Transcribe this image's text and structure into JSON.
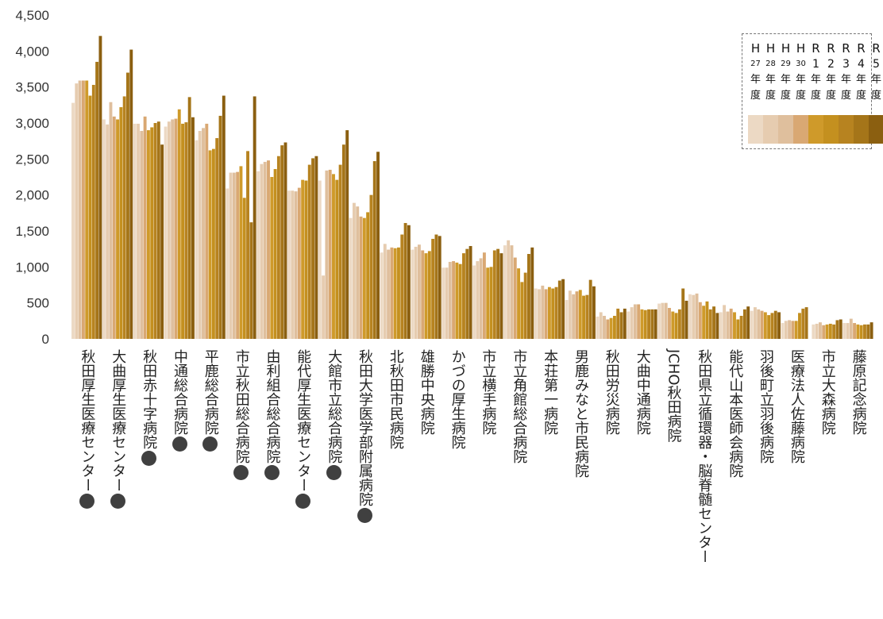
{
  "chart_data": {
    "type": "bar",
    "title": "",
    "xlabel": "",
    "ylabel": "",
    "ylim": [
      0,
      4500
    ],
    "yticks": [
      "0",
      "500",
      "1,000",
      "1,500",
      "2,000",
      "2,500",
      "3,000",
      "3,500",
      "4,000",
      "4,500"
    ],
    "grid": false,
    "legend_position": "top-right",
    "categories": [
      {
        "name": "秋田厚生医療センター",
        "marker": "●"
      },
      {
        "name": "大曲厚生医療センター",
        "marker": "●"
      },
      {
        "name": "秋田赤十字病院",
        "marker": "●"
      },
      {
        "name": "中通総合病院",
        "marker": "●"
      },
      {
        "name": "平鹿総合病院",
        "marker": "●"
      },
      {
        "name": "市立秋田総合病院",
        "marker": "●"
      },
      {
        "name": "由利組合総合病院",
        "marker": "●"
      },
      {
        "name": "能代厚生医療センター",
        "marker": "●"
      },
      {
        "name": "大館市立総合病院",
        "marker": "●"
      },
      {
        "name": "秋田大学医学部附属病院",
        "marker": "●"
      },
      {
        "name": "北秋田市民病院",
        "marker": ""
      },
      {
        "name": "雄勝中央病院",
        "marker": ""
      },
      {
        "name": "かづの厚生病院",
        "marker": ""
      },
      {
        "name": "市立横手病院",
        "marker": ""
      },
      {
        "name": "市立角館総合病院",
        "marker": ""
      },
      {
        "name": "本荘第一病院",
        "marker": ""
      },
      {
        "name": "男鹿みなと市民病院",
        "marker": ""
      },
      {
        "name": "秋田労災病院",
        "marker": ""
      },
      {
        "name": "大曲中通病院",
        "marker": ""
      },
      {
        "name": "JCHO秋田病院",
        "marker": ""
      },
      {
        "name": "秋田県立循環器・脳脊髄センター",
        "marker": ""
      },
      {
        "name": "能代山本医師会病院",
        "marker": ""
      },
      {
        "name": "羽後町立羽後病院",
        "marker": ""
      },
      {
        "name": "医療法人佐藤病院",
        "marker": ""
      },
      {
        "name": "市立大森病院",
        "marker": ""
      },
      {
        "name": "藤原記念病院",
        "marker": ""
      }
    ],
    "series": [
      {
        "legend": [
          "H",
          "27",
          "年",
          "度"
        ],
        "color": "#ecd9c4",
        "values": [
          3280,
          3050,
          2990,
          2950,
          2760,
          2090,
          2330,
          2060,
          2200,
          1680,
          1200,
          1240,
          990,
          1020,
          1300,
          700,
          540,
          310,
          380,
          490,
          620,
          370,
          390,
          220,
          200,
          220
        ]
      },
      {
        "legend": [
          "H",
          "28",
          "年",
          "度"
        ],
        "color": "#e6ccb0",
        "values": [
          3550,
          2980,
          2990,
          3020,
          2890,
          2310,
          2430,
          2060,
          880,
          1890,
          1320,
          1280,
          990,
          1080,
          1370,
          690,
          670,
          370,
          440,
          500,
          610,
          470,
          440,
          250,
          210,
          220
        ]
      },
      {
        "legend": [
          "H",
          "29",
          "年",
          "度"
        ],
        "color": "#dfbf9d",
        "values": [
          3590,
          3290,
          2890,
          3050,
          2930,
          2310,
          2460,
          2050,
          2340,
          1840,
          1240,
          1310,
          1070,
          1120,
          1300,
          740,
          620,
          320,
          480,
          500,
          630,
          380,
          410,
          260,
          230,
          280
        ]
      },
      {
        "legend": [
          "H",
          "30",
          "年",
          "度"
        ],
        "color": "#d9a873",
        "values": [
          3590,
          3090,
          3090,
          3060,
          2990,
          2320,
          2480,
          2100,
          2350,
          1700,
          1270,
          1230,
          1080,
          1200,
          1130,
          690,
          660,
          270,
          480,
          430,
          510,
          420,
          390,
          250,
          190,
          220
        ]
      },
      {
        "legend": [
          "R",
          "1",
          "年",
          "度"
        ],
        "color": "#cf9a2a",
        "values": [
          3590,
          3050,
          2900,
          3190,
          2620,
          2400,
          2250,
          2210,
          2290,
          1680,
          1260,
          1190,
          1060,
          990,
          980,
          720,
          680,
          290,
          410,
          380,
          460,
          370,
          370,
          250,
          200,
          200
        ]
      },
      {
        "legend": [
          "R",
          "2",
          "年",
          "度"
        ],
        "color": "#c4901f",
        "values": [
          3380,
          3220,
          2940,
          2990,
          2640,
          1960,
          2360,
          2200,
          2210,
          1760,
          1270,
          1220,
          1040,
          1000,
          790,
          700,
          600,
          320,
          400,
          360,
          520,
          270,
          330,
          360,
          210,
          190
        ]
      },
      {
        "legend": [
          "R",
          "3",
          "年",
          "度"
        ],
        "color": "#b78320",
        "values": [
          3530,
          3370,
          3000,
          3010,
          2790,
          2610,
          2540,
          2420,
          2420,
          2000,
          1450,
          1390,
          1190,
          1230,
          920,
          720,
          610,
          420,
          410,
          410,
          410,
          320,
          360,
          420,
          200,
          200
        ]
      },
      {
        "legend": [
          "R",
          "4",
          "年",
          "度"
        ],
        "color": "#a57519",
        "values": [
          3850,
          3700,
          3020,
          3360,
          3100,
          1620,
          2690,
          2510,
          2700,
          2470,
          1610,
          1450,
          1250,
          1250,
          1180,
          810,
          820,
          370,
          410,
          700,
          450,
          410,
          390,
          440,
          260,
          200
        ]
      },
      {
        "legend": [
          "R",
          "5",
          "年",
          "度"
        ],
        "color": "#8b5f10",
        "values": [
          4210,
          4020,
          2700,
          3080,
          3380,
          3370,
          2730,
          2540,
          2900,
          2600,
          1580,
          1430,
          1290,
          1190,
          1270,
          830,
          730,
          420,
          410,
          530,
          360,
          450,
          370,
          null,
          270,
          230
        ]
      }
    ]
  }
}
